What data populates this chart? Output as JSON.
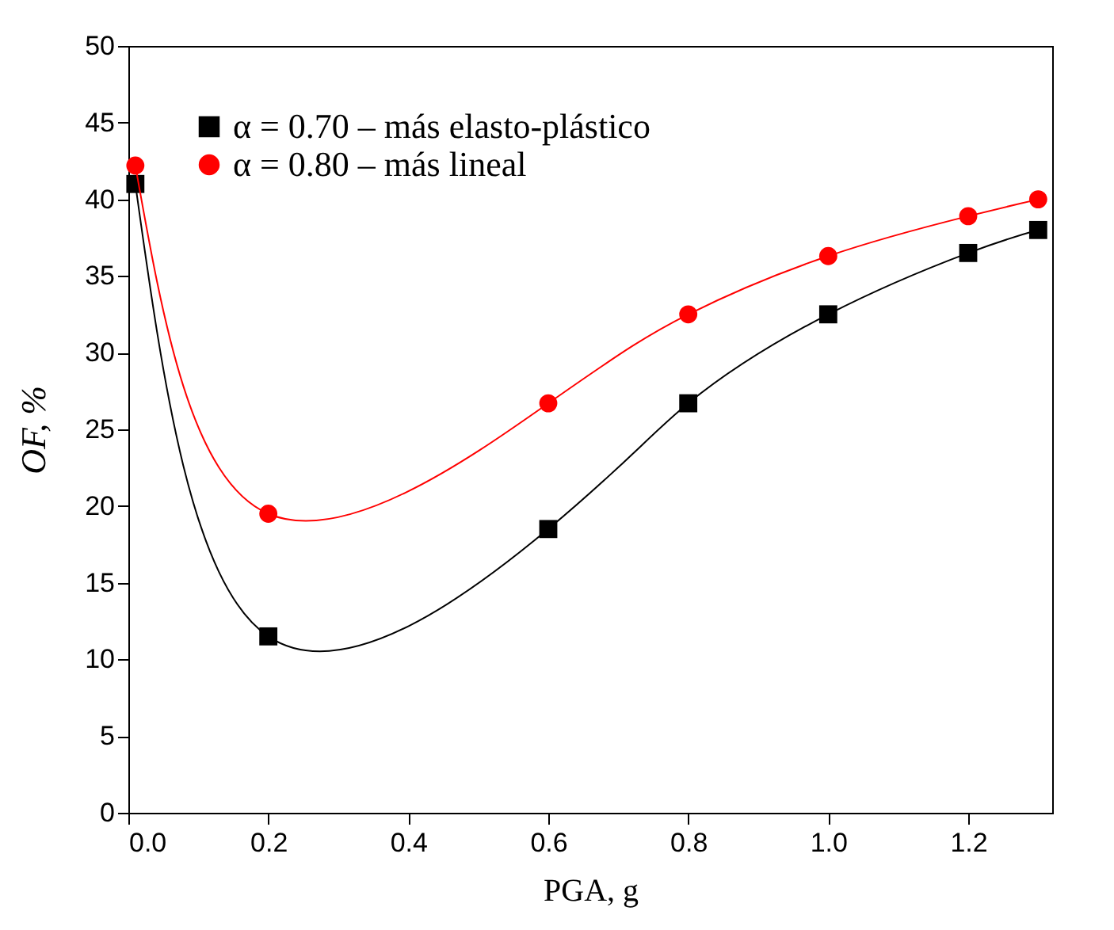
{
  "chart_data": {
    "type": "line",
    "xlabel": "PGA, g",
    "ylabel": "OF, %",
    "x": [
      0.01,
      0.2,
      0.6,
      0.8,
      1.0,
      1.2,
      1.3
    ],
    "series": [
      {
        "name": "α = 0.70 – más elasto-plástico",
        "color": "#000000",
        "marker": "square",
        "values": [
          41.0,
          11.5,
          18.5,
          26.7,
          32.5,
          36.5,
          38.0
        ]
      },
      {
        "name": "α = 0.80 – más lineal",
        "color": "#ff0000",
        "marker": "circle",
        "values": [
          42.2,
          19.5,
          26.7,
          32.5,
          36.3,
          38.9,
          40.0
        ]
      }
    ],
    "xlim": [
      0,
      1.32
    ],
    "xticks": [
      {
        "value": 0,
        "label": "0.0"
      },
      0.2,
      0.4,
      0.6,
      0.8,
      {
        "value": 1,
        "label": "1.0"
      },
      1.2
    ],
    "ylim": [
      0,
      50
    ],
    "yticks": [
      0,
      5,
      10,
      15,
      20,
      25,
      30,
      35,
      40,
      45,
      50
    ],
    "grid": false,
    "legend": "top left"
  }
}
